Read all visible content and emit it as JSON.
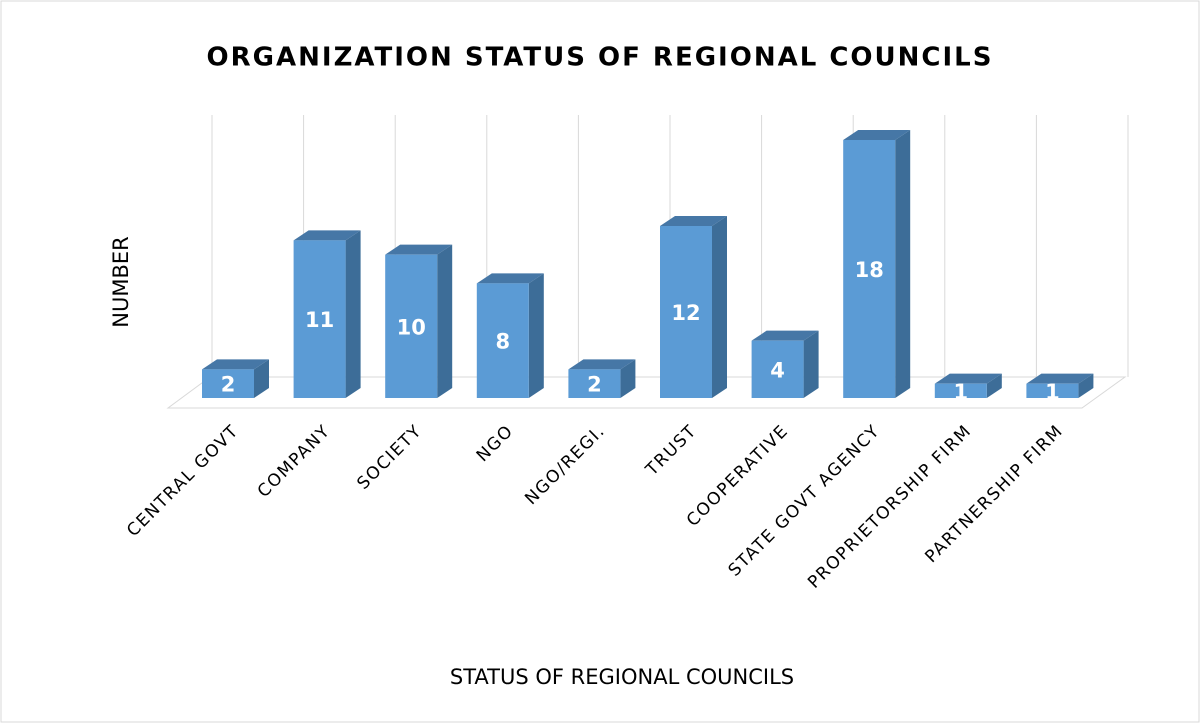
{
  "chart_data": {
    "type": "bar3d",
    "title": "ORGANIZATION STATUS OF REGIONAL COUNCILS",
    "y_label": "NUMBER",
    "x_label": "STATUS OF REGIONAL COUNCILS",
    "categories": [
      "CENTRAL GOVT",
      "COMPANY",
      "SOCIETY",
      "NGO",
      "NGO/REGI.",
      "TRUST",
      "COOPERATIVE",
      "STATE GOVT AGENCY",
      "PROPRIETORSHIP FIRM",
      "PARTNERSHIP FIRM"
    ],
    "values": [
      2,
      11,
      10,
      8,
      2,
      12,
      4,
      18,
      1,
      1
    ],
    "color": "#5b9bd5",
    "grid": true
  }
}
